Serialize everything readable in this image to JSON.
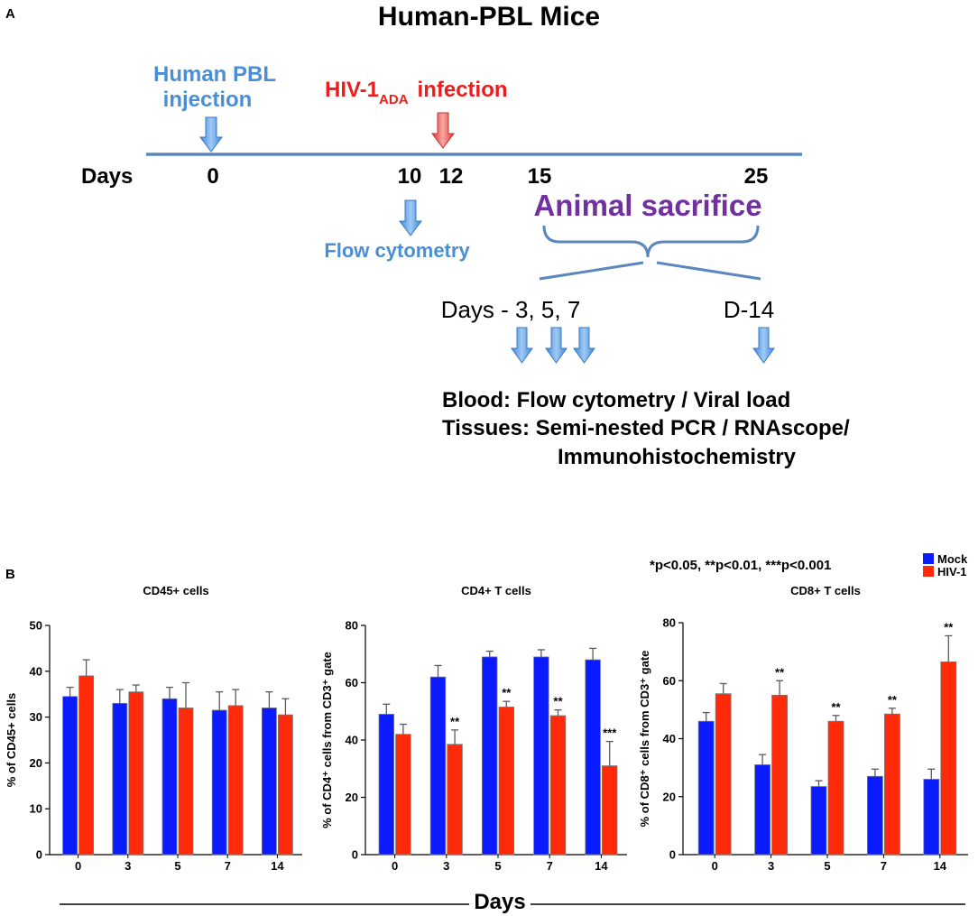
{
  "panel_a": {
    "label": "A",
    "title": "Human-PBL Mice",
    "injection_line1": "Human PBL",
    "injection_line2": "injection",
    "infection_prefix": "HIV-1",
    "infection_sub": "ADA",
    "infection_suffix": "infection",
    "days_label": "Days",
    "day_ticks": [
      "0",
      "10",
      "12",
      "15",
      "25"
    ],
    "flow_label": "Flow cytometry",
    "sacrifice_label": "Animal sacrifice",
    "timepoints_left": "Days - 3, 5, 7",
    "timepoints_right": "D-14",
    "blood_line": "Blood: Flow cytometry / Viral load",
    "tissue_line1": "Tissues: Semi-nested PCR / RNAscope/",
    "tissue_line2": "Immunohistochemistry",
    "colors": {
      "blue_text": "#4a8fd6",
      "red_text": "#ee1d1d",
      "purple_text": "#7030a0",
      "timeline": "#5b87bd",
      "blue_arrow": "#5a9ee6",
      "red_arrow": "#e8524e"
    }
  },
  "panel_b": {
    "label": "B",
    "significance_note": "*p<0.05, **p<0.01, ***p<0.001",
    "legend": [
      {
        "name": "Mock",
        "color": "#0a1bff"
      },
      {
        "name": "HIV-1",
        "color": "#ff2a0a"
      }
    ],
    "xlabel_shared": "Days"
  },
  "chart_data": [
    {
      "type": "bar",
      "title": "CD45+ cells",
      "ylabel": "% of CD45+ cells",
      "ylim": [
        0,
        50
      ],
      "yticks": [
        0,
        10,
        20,
        30,
        40,
        50
      ],
      "categories": [
        "0",
        "3",
        "5",
        "7",
        "14"
      ],
      "series": [
        {
          "name": "Mock",
          "values": [
            34.5,
            33,
            34,
            31.5,
            32
          ],
          "errors": [
            2,
            3,
            2.5,
            4,
            3.5
          ]
        },
        {
          "name": "HIV-1",
          "values": [
            39,
            35.5,
            32,
            32.5,
            30.5
          ],
          "errors": [
            3.5,
            1.5,
            5.5,
            3.5,
            3.5
          ]
        }
      ],
      "annotations": [
        "",
        "",
        "",
        "",
        ""
      ]
    },
    {
      "type": "bar",
      "title": "CD4+ T cells",
      "ylabel": "% of CD4⁺ cells from CD3⁺ gate",
      "ylim": [
        0,
        80
      ],
      "yticks": [
        0,
        20,
        40,
        60,
        80
      ],
      "categories": [
        "0",
        "3",
        "5",
        "7",
        "14"
      ],
      "series": [
        {
          "name": "Mock",
          "values": [
            49,
            62,
            69,
            69,
            68
          ],
          "errors": [
            3.5,
            4,
            2,
            2.5,
            4
          ]
        },
        {
          "name": "HIV-1",
          "values": [
            42,
            38.5,
            51.5,
            48.5,
            31
          ],
          "errors": [
            3.5,
            5,
            2,
            2,
            8.5
          ]
        }
      ],
      "annotations": [
        "",
        "**",
        "**",
        "**",
        "***"
      ]
    },
    {
      "type": "bar",
      "title": "CD8+ T cells",
      "ylabel": "% of CD8⁺ cells from CD3⁺ gate",
      "ylim": [
        0,
        80
      ],
      "yticks": [
        0,
        20,
        40,
        60,
        80
      ],
      "categories": [
        "0",
        "3",
        "5",
        "7",
        "14"
      ],
      "series": [
        {
          "name": "Mock",
          "values": [
            46,
            31,
            23.5,
            27,
            26
          ],
          "errors": [
            3,
            3.5,
            2,
            2.5,
            3.5
          ]
        },
        {
          "name": "HIV-1",
          "values": [
            55.5,
            55,
            46,
            48.5,
            66.5
          ],
          "errors": [
            3.5,
            5,
            2,
            2,
            9
          ]
        }
      ],
      "annotations": [
        "",
        "**",
        "**",
        "**",
        "**"
      ]
    }
  ]
}
